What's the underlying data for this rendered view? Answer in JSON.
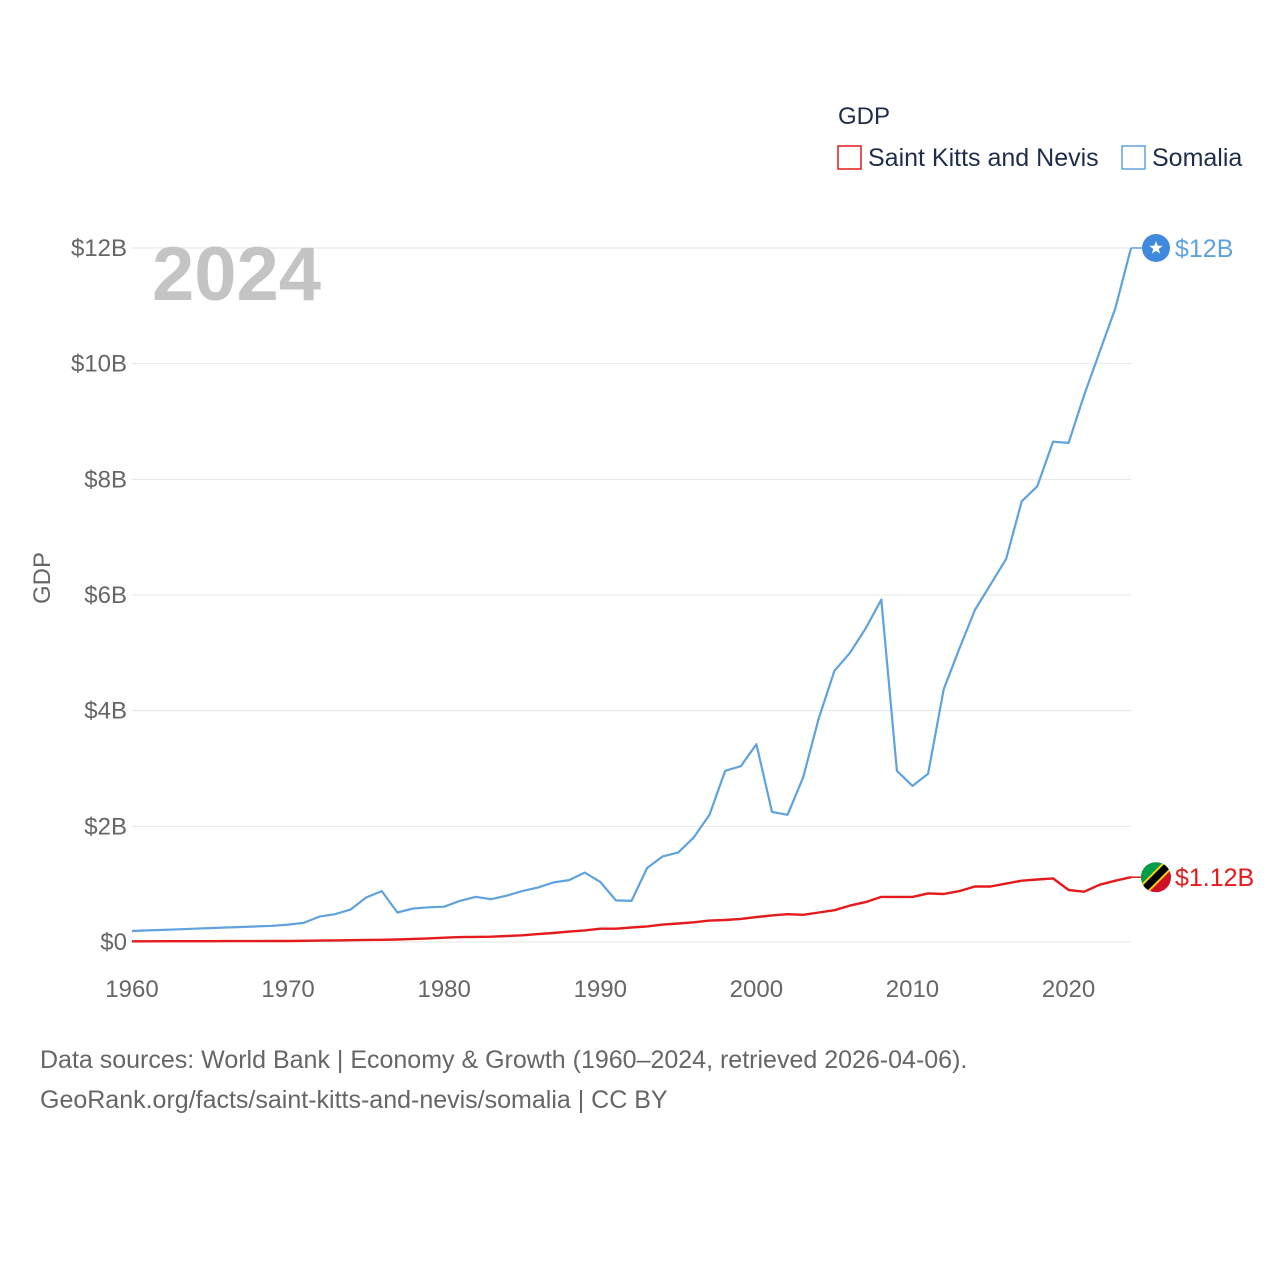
{
  "chart_data": {
    "type": "line",
    "title": "",
    "legend_title": "GDP",
    "legend_position": "top-right",
    "ylabel": "GDP",
    "xlabel": "",
    "year_label": "2024",
    "xlim": [
      1960,
      2024
    ],
    "ylim": [
      0,
      12
    ],
    "x_ticks": [
      1960,
      1970,
      1980,
      1990,
      2000,
      2010,
      2020
    ],
    "y_ticks": [
      {
        "value": 0,
        "label": "$0"
      },
      {
        "value": 2,
        "label": "$2B"
      },
      {
        "value": 4,
        "label": "$4B"
      },
      {
        "value": 6,
        "label": "$6B"
      },
      {
        "value": 8,
        "label": "$8B"
      },
      {
        "value": 10,
        "label": "$10B"
      },
      {
        "value": 12,
        "label": "$12B"
      }
    ],
    "grid": true,
    "x": [
      1960,
      1961,
      1962,
      1963,
      1964,
      1965,
      1966,
      1967,
      1968,
      1969,
      1970,
      1971,
      1972,
      1973,
      1974,
      1975,
      1976,
      1977,
      1978,
      1979,
      1980,
      1981,
      1982,
      1983,
      1984,
      1985,
      1986,
      1987,
      1988,
      1989,
      1990,
      1991,
      1992,
      1993,
      1994,
      1995,
      1996,
      1997,
      1998,
      1999,
      2000,
      2001,
      2002,
      2003,
      2004,
      2005,
      2006,
      2007,
      2008,
      2009,
      2010,
      2011,
      2012,
      2013,
      2014,
      2015,
      2016,
      2017,
      2018,
      2019,
      2020,
      2021,
      2022,
      2023,
      2024
    ],
    "series": [
      {
        "name": "Saint Kitts and Nevis",
        "color": "#e41a1c",
        "end_label": "$1.12B",
        "values": [
          0.012,
          0.012,
          0.013,
          0.013,
          0.014,
          0.014,
          0.015,
          0.016,
          0.016,
          0.017,
          0.018,
          0.021,
          0.024,
          0.027,
          0.031,
          0.037,
          0.038,
          0.044,
          0.053,
          0.062,
          0.074,
          0.084,
          0.088,
          0.091,
          0.104,
          0.115,
          0.136,
          0.155,
          0.18,
          0.2,
          0.23,
          0.23,
          0.25,
          0.27,
          0.3,
          0.32,
          0.34,
          0.37,
          0.38,
          0.4,
          0.43,
          0.46,
          0.48,
          0.47,
          0.51,
          0.55,
          0.63,
          0.69,
          0.78,
          0.78,
          0.78,
          0.84,
          0.83,
          0.88,
          0.96,
          0.96,
          1.01,
          1.06,
          1.08,
          1.1,
          0.9,
          0.87,
          0.99,
          1.06,
          1.12
        ]
      },
      {
        "name": "Somalia",
        "color": "#5fa2dd",
        "end_label": "$12B",
        "values": [
          0.19,
          0.2,
          0.21,
          0.22,
          0.23,
          0.24,
          0.25,
          0.26,
          0.27,
          0.28,
          0.3,
          0.33,
          0.44,
          0.48,
          0.56,
          0.77,
          0.88,
          0.51,
          0.58,
          0.6,
          0.61,
          0.71,
          0.78,
          0.74,
          0.8,
          0.88,
          0.94,
          1.03,
          1.07,
          1.2,
          1.04,
          0.72,
          0.71,
          1.28,
          1.48,
          1.55,
          1.81,
          2.2,
          2.96,
          3.04,
          3.42,
          2.25,
          2.2,
          2.85,
          3.87,
          4.69,
          5.0,
          5.42,
          5.92,
          2.96,
          2.7,
          2.91,
          4.37,
          5.07,
          5.74,
          6.18,
          6.62,
          7.62,
          7.88,
          8.65,
          8.63,
          9.46,
          10.21,
          10.96,
          12.0
        ]
      }
    ]
  },
  "footer": {
    "line1": "Data sources: World Bank | Economy & Growth (1960–2024, retrieved 2026-04-06).",
    "line2": "GeoRank.org/facts/saint-kitts-and-nevis/somalia | CC BY"
  }
}
